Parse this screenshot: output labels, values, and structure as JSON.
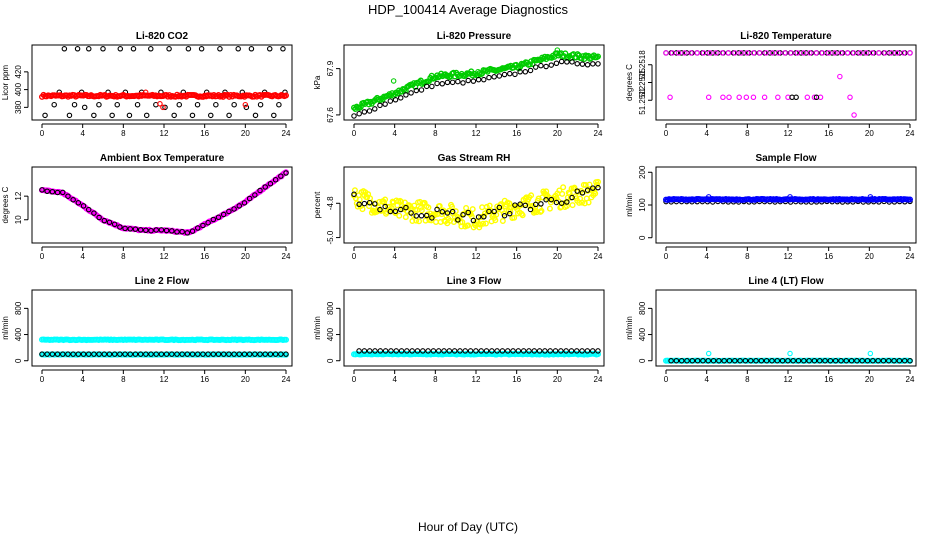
{
  "title": "HDP_100414  Average Diagnostics",
  "xlabel": "Hour of Day (UTC)",
  "chart_data": [
    {
      "type": "scatter",
      "title": "Li-820 CO2",
      "ylabel": "Licor ppm",
      "xlim": [
        0,
        24
      ],
      "ylim": [
        368,
        448
      ],
      "xticks": [
        "0",
        "4",
        "8",
        "12",
        "16",
        "20",
        "24"
      ],
      "yticks": [
        {
          "v": 380,
          "t": "380"
        },
        {
          "v": 400,
          "t": "400"
        },
        {
          "v": 420,
          "t": "420"
        }
      ],
      "series": [
        {
          "color": "#000000",
          "kind": "open",
          "dens": "sparse",
          "pts": [
            [
              0.3,
              371
            ],
            [
              1.2,
              383
            ],
            [
              1.7,
              397
            ],
            [
              2.2,
              446
            ],
            [
              2.7,
              371
            ],
            [
              3.2,
              383
            ],
            [
              3.5,
              446
            ],
            [
              3.9,
              397
            ],
            [
              4.2,
              380
            ],
            [
              4.6,
              446
            ],
            [
              5.1,
              371
            ],
            [
              5.6,
              383
            ],
            [
              6.0,
              446
            ],
            [
              6.5,
              397
            ],
            [
              6.9,
              371
            ],
            [
              7.4,
              383
            ],
            [
              7.7,
              446
            ],
            [
              8.2,
              397
            ],
            [
              8.6,
              371
            ],
            [
              9.0,
              446
            ],
            [
              9.4,
              383
            ],
            [
              9.8,
              397
            ],
            [
              10.3,
              371
            ],
            [
              10.7,
              446
            ],
            [
              11.2,
              383
            ],
            [
              11.7,
              397
            ],
            [
              12.1,
              380
            ],
            [
              12.5,
              446
            ],
            [
              13.0,
              371
            ],
            [
              13.5,
              383
            ],
            [
              13.9,
              397
            ],
            [
              14.4,
              446
            ],
            [
              14.8,
              371
            ],
            [
              15.3,
              383
            ],
            [
              15.7,
              446
            ],
            [
              16.2,
              397
            ],
            [
              16.6,
              371
            ],
            [
              17.1,
              383
            ],
            [
              17.5,
              446
            ],
            [
              18.0,
              397
            ],
            [
              18.4,
              371
            ],
            [
              18.9,
              383
            ],
            [
              19.3,
              446
            ],
            [
              19.7,
              397
            ],
            [
              20.1,
              380
            ],
            [
              20.6,
              446
            ],
            [
              21.0,
              371
            ],
            [
              21.5,
              383
            ],
            [
              21.9,
              397
            ],
            [
              22.4,
              446
            ],
            [
              22.8,
              371
            ],
            [
              23.3,
              383
            ],
            [
              23.7,
              446
            ],
            [
              23.9,
              397
            ]
          ]
        },
        {
          "color": "#ff0000",
          "kind": "dense",
          "y": [
            [
              0,
              393
            ],
            [
              24,
              393
            ]
          ],
          "n": 160,
          "jit": 1.2
        },
        {
          "color": "#ff0000",
          "kind": "open",
          "pts": [
            [
              10.2,
              397
            ],
            [
              11.6,
              384
            ],
            [
              11.9,
              380
            ],
            [
              20.0,
              383
            ]
          ]
        }
      ]
    },
    {
      "type": "scatter",
      "title": "Li-820 Pressure",
      "ylabel": "kPa",
      "xlim": [
        0,
        24
      ],
      "ylim": [
        67.58,
        68.04
      ],
      "xticks": [
        "0",
        "4",
        "8",
        "12",
        "16",
        "20",
        "24"
      ],
      "yticks": [
        {
          "v": 67.6,
          "t": "67.6"
        },
        {
          "v": 67.9,
          "t": "67.9"
        }
      ],
      "series": [
        {
          "color": "#00cc00",
          "kind": "dense",
          "y": [
            [
              0,
              67.64
            ],
            [
              4,
              67.74
            ],
            [
              8,
              67.85
            ],
            [
              12,
              67.87
            ],
            [
              16,
              67.91
            ],
            [
              20,
              67.99
            ],
            [
              24,
              67.97
            ]
          ],
          "n": 180,
          "jit": 0.015
        },
        {
          "color": "#000000",
          "kind": "open",
          "line": [
            [
              0,
              67.59
            ],
            [
              4,
              67.7
            ],
            [
              8,
              67.8
            ],
            [
              12,
              67.82
            ],
            [
              16,
              67.87
            ],
            [
              20,
              67.94
            ],
            [
              24,
              67.93
            ]
          ],
          "n": 48,
          "jit": 0.008
        },
        {
          "color": "#00cc00",
          "kind": "open",
          "pts": [
            [
              3.9,
              67.82
            ],
            [
              12.2,
              67.88
            ],
            [
              20.0,
              68.02
            ]
          ]
        }
      ]
    },
    {
      "type": "scatter",
      "title": "Li-820 Temperature",
      "ylabel": "degrees C",
      "xlim": [
        0,
        24
      ],
      "ylim": [
        51.2509,
        51.2521
      ],
      "xticks": [
        "0",
        "4",
        "8",
        "12",
        "16",
        "20",
        "24"
      ],
      "yticks": [
        {
          "v": 51.2512,
          "t": "51.2512"
        },
        {
          "v": 51.2515,
          "t": "51.2515"
        },
        {
          "v": 51.2518,
          "t": "51.2518"
        }
      ],
      "series": [
        {
          "color": "#000000",
          "kind": "open",
          "line": [
            [
              0,
              51.252
            ],
            [
              24,
              51.252
            ]
          ],
          "n": 48,
          "jit": 0
        },
        {
          "color": "#ff00ff",
          "kind": "open",
          "line": [
            [
              0,
              51.252
            ],
            [
              24,
              51.252
            ]
          ],
          "n": 40,
          "jit": 0
        },
        {
          "color": "#ff00ff",
          "kind": "open",
          "pts": [
            [
              0.4,
              51.25125
            ],
            [
              4.2,
              51.25125
            ],
            [
              5.6,
              51.25125
            ],
            [
              6.2,
              51.25125
            ],
            [
              7.2,
              51.25125
            ],
            [
              7.9,
              51.25125
            ],
            [
              8.6,
              51.25125
            ],
            [
              9.7,
              51.25125
            ],
            [
              11.0,
              51.25125
            ],
            [
              12.0,
              51.25125
            ],
            [
              13.9,
              51.25125
            ],
            [
              14.6,
              51.25125
            ],
            [
              15.2,
              51.25125
            ],
            [
              17.1,
              51.2516
            ],
            [
              18.1,
              51.25125
            ],
            [
              18.5,
              51.25095
            ]
          ]
        },
        {
          "color": "#000000",
          "kind": "open",
          "pts": [
            [
              12.4,
              51.25125
            ],
            [
              12.8,
              51.25125
            ],
            [
              14.8,
              51.25125
            ]
          ]
        }
      ]
    },
    {
      "type": "scatter",
      "title": "Ambient Box Temperature",
      "ylabel": "degrees C",
      "xlim": [
        0,
        24
      ],
      "ylim": [
        8.2,
        14.3
      ],
      "xticks": [
        "0",
        "4",
        "8",
        "12",
        "16",
        "20",
        "24"
      ],
      "yticks": [
        {
          "v": 10,
          "t": "10"
        },
        {
          "v": 12,
          "t": "12"
        }
      ],
      "series": [
        {
          "color": "#ff00ff",
          "kind": "dense",
          "y": [
            [
              0,
              12.5
            ],
            [
              2,
              12.3
            ],
            [
              4,
              11.2
            ],
            [
              6,
              10.0
            ],
            [
              8,
              9.3
            ],
            [
              10,
              9.1
            ],
            [
              12,
              9.1
            ],
            [
              14.5,
              8.9
            ],
            [
              16,
              9.6
            ],
            [
              18,
              10.5
            ],
            [
              20,
              11.5
            ],
            [
              22,
              12.8
            ],
            [
              24,
              14.0
            ]
          ],
          "n": 160,
          "jit": 0.05
        },
        {
          "color": "#000000",
          "kind": "open",
          "line": [
            [
              0,
              12.5
            ],
            [
              2,
              12.3
            ],
            [
              4,
              11.2
            ],
            [
              6,
              10.0
            ],
            [
              8,
              9.3
            ],
            [
              10,
              9.1
            ],
            [
              12,
              9.1
            ],
            [
              14.5,
              8.9
            ],
            [
              16,
              9.6
            ],
            [
              18,
              10.5
            ],
            [
              20,
              11.5
            ],
            [
              22,
              12.8
            ],
            [
              24,
              14.0
            ]
          ],
          "n": 48,
          "jit": 0.04
        }
      ]
    },
    {
      "type": "scatter",
      "title": "Gas Stream RH",
      "ylabel": "percent",
      "xlim": [
        0,
        24
      ],
      "ylim": [
        -5.02,
        -4.6
      ],
      "xticks": [
        "0",
        "4",
        "8",
        "12",
        "16",
        "20",
        "24"
      ],
      "yticks": [
        {
          "v": -5.0,
          "t": "-5.0"
        },
        {
          "v": -4.8,
          "t": "-4.8"
        }
      ],
      "series": [
        {
          "color": "#ffff00",
          "kind": "dense",
          "y": [
            [
              0,
              -4.76
            ],
            [
              4,
              -4.84
            ],
            [
              8,
              -4.85
            ],
            [
              12,
              -4.89
            ],
            [
              16,
              -4.82
            ],
            [
              20,
              -4.77
            ],
            [
              24,
              -4.73
            ]
          ],
          "n": 260,
          "jit": 0.06
        },
        {
          "color": "#000000",
          "kind": "open",
          "line": [
            [
              0,
              -4.77
            ],
            [
              4,
              -4.84
            ],
            [
              8,
              -4.86
            ],
            [
              12,
              -4.88
            ],
            [
              16,
              -4.83
            ],
            [
              20,
              -4.78
            ],
            [
              24,
              -4.73
            ]
          ],
          "n": 48,
          "jit": 0.03
        }
      ]
    },
    {
      "type": "scatter",
      "title": "Sample Flow",
      "ylabel": "ml/min",
      "xlim": [
        0,
        24
      ],
      "ylim": [
        -10,
        210
      ],
      "xticks": [
        "0",
        "4",
        "8",
        "12",
        "16",
        "20",
        "24"
      ],
      "yticks": [
        {
          "v": 0,
          "t": "0"
        },
        {
          "v": 100,
          "t": "100"
        },
        {
          "v": 200,
          "t": "200"
        }
      ],
      "series": [
        {
          "color": "#000000",
          "kind": "open",
          "line": [
            [
              0,
              110
            ],
            [
              24,
              110
            ]
          ],
          "n": 48,
          "jit": 1
        },
        {
          "color": "#0000ff",
          "kind": "dense",
          "y": [
            [
              0,
              117
            ],
            [
              24,
              117
            ]
          ],
          "n": 160,
          "jit": 1.5
        },
        {
          "color": "#0000ff",
          "kind": "open",
          "pts": [
            [
              4.2,
              125
            ],
            [
              12.2,
              125
            ],
            [
              20.1,
              125
            ]
          ]
        }
      ]
    },
    {
      "type": "scatter",
      "title": "Line 2 Flow",
      "ylabel": "ml/min",
      "xlim": [
        0,
        24
      ],
      "ylim": [
        -50,
        1050
      ],
      "xticks": [
        "0",
        "4",
        "8",
        "12",
        "16",
        "20",
        "24"
      ],
      "yticks": [
        {
          "v": 0,
          "t": "0"
        },
        {
          "v": 400,
          "t": "400"
        },
        {
          "v": 800,
          "t": "800"
        }
      ],
      "series": [
        {
          "color": "#00ffff",
          "kind": "dense",
          "y": [
            [
              0,
              320
            ],
            [
              24,
              320
            ]
          ],
          "n": 160,
          "jit": 5
        },
        {
          "color": "#00ffff",
          "kind": "dense",
          "y": [
            [
              0,
              95
            ],
            [
              24,
              95
            ]
          ],
          "n": 160,
          "jit": 3
        },
        {
          "color": "#000000",
          "kind": "open",
          "line": [
            [
              0,
              100
            ],
            [
              24,
              100
            ]
          ],
          "n": 48,
          "jit": 0
        }
      ]
    },
    {
      "type": "scatter",
      "title": "Line 3 Flow",
      "ylabel": "ml/min",
      "xlim": [
        0,
        24
      ],
      "ylim": [
        -50,
        1050
      ],
      "xticks": [
        "0",
        "4",
        "8",
        "12",
        "16",
        "20",
        "24"
      ],
      "yticks": [
        {
          "v": 0,
          "t": "0"
        },
        {
          "v": 400,
          "t": "400"
        },
        {
          "v": 800,
          "t": "800"
        }
      ],
      "series": [
        {
          "color": "#00ffff",
          "kind": "dense",
          "y": [
            [
              0,
              100
            ],
            [
              24,
              100
            ]
          ],
          "n": 160,
          "jit": 6
        },
        {
          "color": "#000000",
          "kind": "open",
          "line": [
            [
              0.5,
              150
            ],
            [
              24,
              150
            ]
          ],
          "n": 46,
          "jit": 0
        }
      ]
    },
    {
      "type": "scatter",
      "title": "Line 4 (LT) Flow",
      "ylabel": "ml/min",
      "xlim": [
        0,
        24
      ],
      "ylim": [
        -50,
        1050
      ],
      "xticks": [
        "0",
        "4",
        "8",
        "12",
        "16",
        "20",
        "24"
      ],
      "yticks": [
        {
          "v": 0,
          "t": "0"
        },
        {
          "v": 400,
          "t": "400"
        },
        {
          "v": 800,
          "t": "800"
        }
      ],
      "series": [
        {
          "color": "#00ffff",
          "kind": "dense",
          "y": [
            [
              0,
              0
            ],
            [
              24,
              0
            ]
          ],
          "n": 160,
          "jit": 2
        },
        {
          "color": "#000000",
          "kind": "open",
          "line": [
            [
              0.5,
              0
            ],
            [
              24,
              0
            ]
          ],
          "n": 46,
          "jit": 0
        },
        {
          "color": "#00ffff",
          "kind": "open",
          "pts": [
            [
              4.2,
              110
            ],
            [
              12.2,
              110
            ],
            [
              20.1,
              110
            ]
          ]
        }
      ]
    }
  ]
}
